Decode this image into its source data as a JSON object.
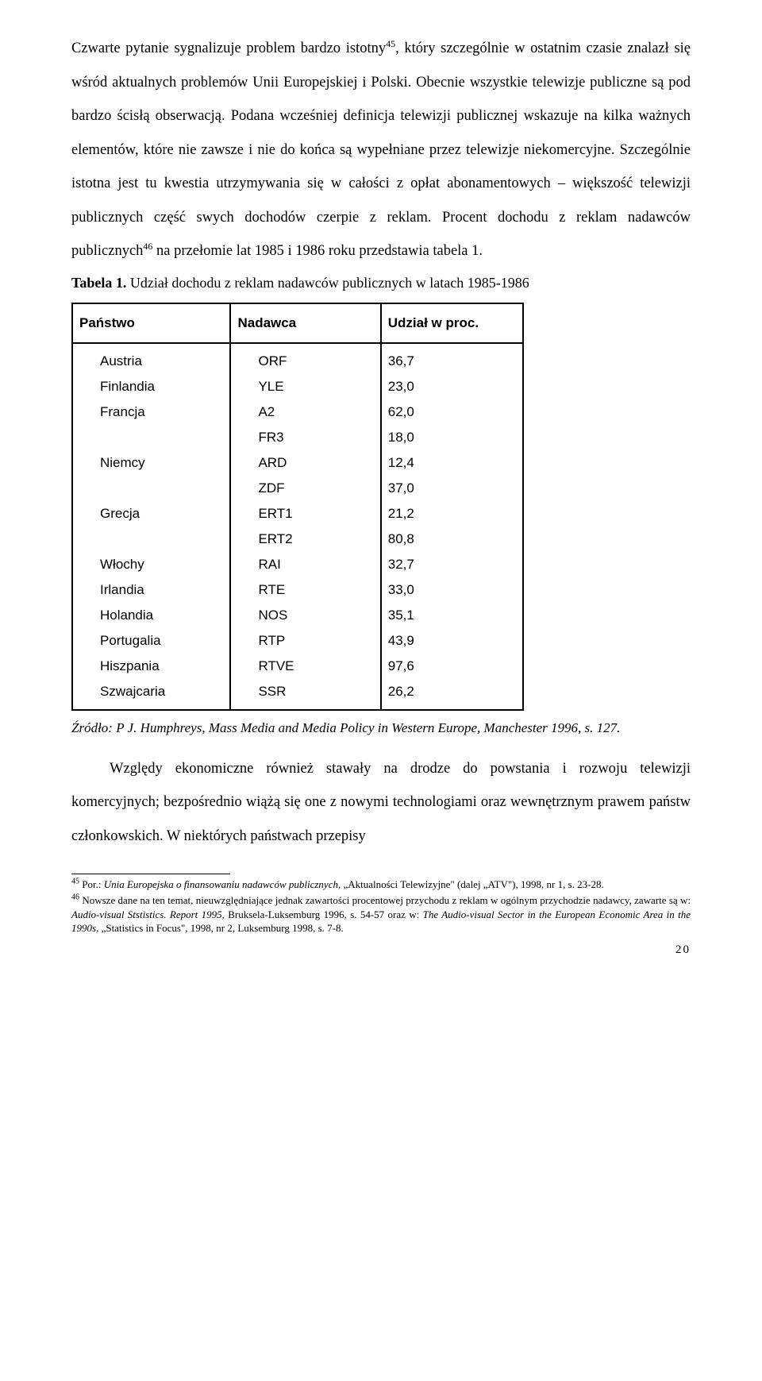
{
  "para1": "Czwarte pytanie sygnalizuje problem bardzo istotny",
  "sup1": "45",
  "para1b": ", który szczególnie w ostatnim czasie znalazł się wśród aktualnych problemów Unii Europejskiej i Polski. Obecnie wszystkie telewizje publiczne są pod bardzo ścisłą obserwacją. Podana wcześniej definicja telewizji publicznej wskazuje na kilka ważnych elementów, które nie zawsze i nie do końca są wypełniane przez telewizje niekomercyjne. Szczególnie istotna jest tu kwestia utrzymywania się w całości z opłat abonamentowych – większość telewizji publicznych część swych dochodów czerpie z reklam. Procent dochodu z reklam nadawców publicznych",
  "sup2": "46",
  "para1c": " na przełomie lat 1985 i 1986 roku przedstawia tabela 1.",
  "table_caption_bold": "Tabela 1.",
  "table_caption_rest": " Udział dochodu z reklam nadawców publicznych w latach 1985-1986",
  "table": {
    "headers": [
      "Państwo",
      "Nadawca",
      "Udział w proc."
    ],
    "rows": [
      [
        "Austria",
        "ORF",
        "36,7"
      ],
      [
        "Finlandia",
        "YLE",
        "23,0"
      ],
      [
        "Francja",
        "A2",
        "62,0"
      ],
      [
        "",
        "FR3",
        "18,0"
      ],
      [
        "Niemcy",
        "ARD",
        "12,4"
      ],
      [
        "",
        "ZDF",
        "37,0"
      ],
      [
        "Grecja",
        "ERT1",
        "21,2"
      ],
      [
        "",
        "ERT2",
        "80,8"
      ],
      [
        "Włochy",
        "RAI",
        "32,7"
      ],
      [
        "Irlandia",
        "RTE",
        "33,0"
      ],
      [
        "Holandia",
        "NOS",
        "35,1"
      ],
      [
        "Portugalia",
        "RTP",
        "43,9"
      ],
      [
        "Hiszpania",
        "RTVE",
        "97,6"
      ],
      [
        "Szwajcaria",
        "SSR",
        "26,2"
      ]
    ]
  },
  "source": "Źródło: P J. Humphreys, Mass Media and Media Policy in Western Europe, Manchester 1996, s. 127.",
  "para2": "Względy ekonomiczne również stawały na drodze do powstania i rozwoju telewizji komercyjnych; bezpośrednio wiążą się one z nowymi technologiami oraz wewnętrznym prawem państw członkowskich. W niektórych państwach przepisy",
  "footnote45_sup": "45",
  "footnote45_a": " Por.: ",
  "footnote45_i": "Unia Europejska o finansowaniu nadawców publicznych",
  "footnote45_b": ", „Aktualności Telewizyjne\" (dalej „ATV\"), 1998, nr 1, s. 23-28.",
  "footnote46_sup": "46",
  "footnote46_a": " Nowsze dane na ten temat, nieuwzględniające jednak zawartości procentowej przychodu z reklam w ogólnym przychodzie nadawcy, zawarte są w: ",
  "footnote46_i1": "Audio-visual Ststistics. Report 1995",
  "footnote46_b": ", Bruksela-Luksemburg 1996, s. 54-57 oraz w: ",
  "footnote46_i2": "The Audio-visual Sector in the European Economic Area in the 1990s",
  "footnote46_c": ", „Statistics in Focus\", 1998, nr 2, Luksemburg 1998, s. 7-8.",
  "page_number": "20"
}
